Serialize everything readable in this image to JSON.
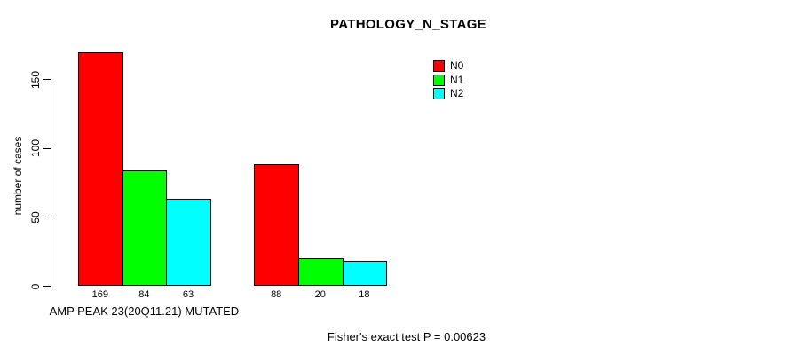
{
  "chart_data": {
    "type": "bar",
    "title": "PATHOLOGY_N_STAGE",
    "ylabel": "number of cases",
    "xlabel": "",
    "ylim": [
      0,
      169
    ],
    "yticks": [
      0,
      50,
      100,
      150
    ],
    "grid": false,
    "legend_position": "top-right-outside-plot",
    "series": [
      {
        "name": "N0",
        "color": "#FF0000"
      },
      {
        "name": "N1",
        "color": "#00FF00"
      },
      {
        "name": "N2",
        "color": "#00FFFF"
      }
    ],
    "groups": [
      {
        "label": "AMP PEAK 23(20Q11.21) MUTATED",
        "values": [
          169,
          84,
          63
        ]
      },
      {
        "label": "",
        "values": [
          88,
          20,
          18
        ]
      }
    ],
    "bar_value_labels": [
      [
        "169",
        "84",
        "63"
      ],
      [
        "88",
        "20",
        "18"
      ]
    ],
    "footnote": "Fisher's exact test P = 0.00623",
    "colors": {
      "axis": "#000000",
      "text": "#000000",
      "background": "#ffffff"
    }
  }
}
